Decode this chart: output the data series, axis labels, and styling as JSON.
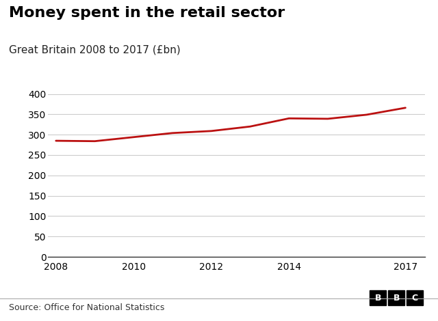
{
  "title": "Money spent in the retail sector",
  "subtitle": "Great Britain 2008 to 2017 (£bn)",
  "source": "Source: Office for National Statistics",
  "years": [
    2008,
    2009,
    2010,
    2011,
    2012,
    2013,
    2014,
    2015,
    2016,
    2017
  ],
  "values": [
    285,
    284,
    294,
    304,
    309,
    320,
    340,
    339,
    349,
    366
  ],
  "line_color": "#bb1111",
  "line_width": 2.0,
  "background_color": "#ffffff",
  "plot_bg_color": "#ffffff",
  "grid_color": "#cccccc",
  "title_fontsize": 16,
  "subtitle_fontsize": 11,
  "source_fontsize": 9,
  "tick_fontsize": 10,
  "ylim": [
    0,
    410
  ],
  "yticks": [
    0,
    50,
    100,
    150,
    200,
    250,
    300,
    350,
    400
  ],
  "xticks": [
    2008,
    2010,
    2012,
    2014,
    2017
  ],
  "bbc_logo_text": "BBC"
}
